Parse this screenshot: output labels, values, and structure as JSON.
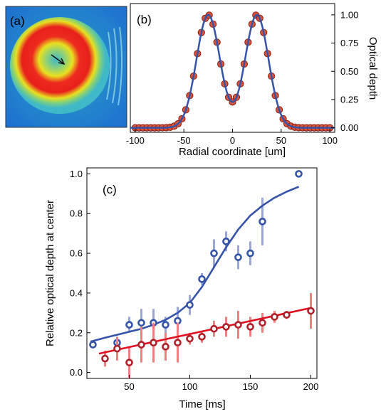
{
  "colors": {
    "ring_outer": "#3fb8c8",
    "ring_yellow": "#e8e020",
    "ring_red": "#e8201c",
    "profile_marker_fill": "#d9553a",
    "profile_marker_edge": "#8a1e14",
    "fit_blue": "#3553a8",
    "blue_series": "#3553a8",
    "blue_err": "#9aa6d8",
    "red_series": "#b0202a",
    "red_err": "#f08080",
    "red_fit": "#e01020"
  },
  "panel_a": {
    "label": "(a)"
  },
  "chart_data": [
    {
      "type": "scatter",
      "label": "(b)",
      "xlabel": "Radial coordinate [um]",
      "ylabel": "Optical depth",
      "xlim": [
        -105,
        105
      ],
      "ylim": [
        -0.04,
        1.1
      ],
      "xticks": [
        -100,
        -50,
        0,
        50,
        100
      ],
      "xtick_labels": [
        "-100",
        "-50",
        "0",
        "50",
        "100"
      ],
      "yticks": [
        0,
        0.25,
        0.5,
        0.75,
        1.0
      ],
      "ytick_labels": [
        "0.00",
        "0.25",
        "0.50",
        "0.75",
        "1.00"
      ],
      "yaxis_side": "right",
      "grid": false,
      "model": {
        "amplitude": 1.0,
        "peak_position": 25,
        "peak_width": 12,
        "baseline": 0.0
      },
      "x": [
        -100,
        -96,
        -92,
        -88,
        -84,
        -80,
        -76,
        -72,
        -68,
        -64,
        -60,
        -56,
        -52,
        -48,
        -44,
        -40,
        -36,
        -32,
        -28,
        -24,
        -20,
        -16,
        -12,
        -8,
        -4,
        0,
        4,
        8,
        12,
        16,
        20,
        24,
        28,
        32,
        36,
        40,
        44,
        48,
        52,
        56,
        60,
        64,
        68,
        72,
        76,
        80,
        84,
        88,
        92,
        96,
        100
      ]
    },
    {
      "type": "scatter",
      "label": "(c)",
      "xlabel": "Time [ms]",
      "ylabel": "Relative optical depth at center",
      "xlim": [
        15,
        205
      ],
      "ylim": [
        -0.03,
        1.03
      ],
      "xticks": [
        50,
        100,
        150,
        200
      ],
      "xtick_labels": [
        "50",
        "100",
        "150",
        "200"
      ],
      "yticks": [
        0,
        0.2,
        0.4,
        0.6,
        0.8,
        1.0
      ],
      "ytick_labels": [
        "0.0",
        "0.2",
        "0.4",
        "0.6",
        "0.8",
        "1.0"
      ],
      "grid": false,
      "series": [
        {
          "color": "blue",
          "points": [
            {
              "x": 20,
              "y": 0.14,
              "err": 0.01
            },
            {
              "x": 40,
              "y": 0.15,
              "err": 0.03
            },
            {
              "x": 50,
              "y": 0.24,
              "err": 0.04
            },
            {
              "x": 60,
              "y": 0.25,
              "err": 0.07
            },
            {
              "x": 70,
              "y": 0.25,
              "err": 0.07
            },
            {
              "x": 80,
              "y": 0.24,
              "err": 0.04
            },
            {
              "x": 90,
              "y": 0.26,
              "err": 0.07
            },
            {
              "x": 100,
              "y": 0.34,
              "err": 0.05
            },
            {
              "x": 110,
              "y": 0.47,
              "err": 0.03
            },
            {
              "x": 120,
              "y": 0.6,
              "err": 0.07
            },
            {
              "x": 130,
              "y": 0.66,
              "err": 0.05
            },
            {
              "x": 140,
              "y": 0.58,
              "err": 0.06
            },
            {
              "x": 150,
              "y": 0.6,
              "err": 0.06
            },
            {
              "x": 160,
              "y": 0.76,
              "err": 0.12
            },
            {
              "x": 190,
              "y": 1.0,
              "err": 0.0
            }
          ],
          "fit": [
            [
              18,
              0.155
            ],
            [
              30,
              0.175
            ],
            [
              40,
              0.19
            ],
            [
              50,
              0.205
            ],
            [
              60,
              0.22
            ],
            [
              70,
              0.24
            ],
            [
              80,
              0.265
            ],
            [
              90,
              0.3
            ],
            [
              100,
              0.35
            ],
            [
              110,
              0.43
            ],
            [
              120,
              0.53
            ],
            [
              130,
              0.63
            ],
            [
              140,
              0.72
            ],
            [
              150,
              0.79
            ],
            [
              160,
              0.84
            ],
            [
              170,
              0.88
            ],
            [
              180,
              0.91
            ],
            [
              190,
              0.935
            ]
          ]
        },
        {
          "color": "red",
          "points": [
            {
              "x": 30,
              "y": 0.07,
              "err": 0.04
            },
            {
              "x": 40,
              "y": 0.12,
              "err": 0.06
            },
            {
              "x": 50,
              "y": 0.05,
              "err": 0.08
            },
            {
              "x": 60,
              "y": 0.14,
              "err": 0.09
            },
            {
              "x": 70,
              "y": 0.15,
              "err": 0.1
            },
            {
              "x": 80,
              "y": 0.13,
              "err": 0.07
            },
            {
              "x": 90,
              "y": 0.15,
              "err": 0.1
            },
            {
              "x": 100,
              "y": 0.17,
              "err": 0.03
            },
            {
              "x": 110,
              "y": 0.18,
              "err": 0.03
            },
            {
              "x": 120,
              "y": 0.22,
              "err": 0.04
            },
            {
              "x": 130,
              "y": 0.23,
              "err": 0.05
            },
            {
              "x": 140,
              "y": 0.24,
              "err": 0.07
            },
            {
              "x": 150,
              "y": 0.23,
              "err": 0.05
            },
            {
              "x": 160,
              "y": 0.25,
              "err": 0.05
            },
            {
              "x": 170,
              "y": 0.28,
              "err": 0.03
            },
            {
              "x": 180,
              "y": 0.29,
              "err": 0.02
            },
            {
              "x": 200,
              "y": 0.31,
              "err": 0.09
            }
          ],
          "fit": [
            [
              25,
              0.095
            ],
            [
              200,
              0.325
            ]
          ]
        }
      ]
    }
  ]
}
